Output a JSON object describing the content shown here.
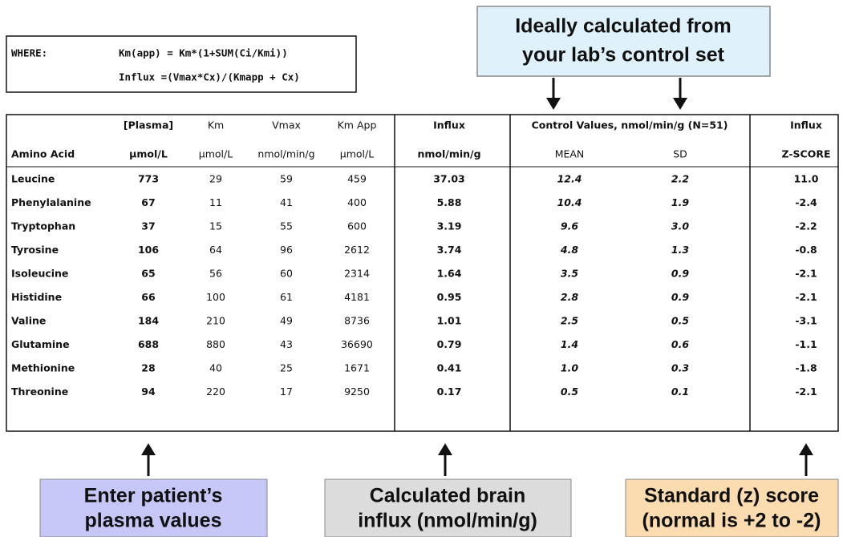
{
  "formula": {
    "label": "WHERE:",
    "lines": [
      "Km(app) =  Km*(1+SUM(Ci/Kmi))",
      "Influx =(Vmax*Cx)/(Kmapp + Cx)"
    ]
  },
  "top_callout": {
    "lines": [
      "Ideally calculated from",
      "your lab’s control set"
    ]
  },
  "table": {
    "header_top": [
      "[Plasma]",
      "Km",
      "Vmax",
      "Km App",
      "Influx",
      "Control Values, nmol/min/g (N=51)",
      "Influx"
    ],
    "header": [
      "Amino Acid",
      "μmol/L",
      "μmol/L",
      "nmol/min/g",
      "μmol/L",
      "nmol/min/g",
      "MEAN",
      "SD",
      "Z-SCORE"
    ],
    "rows": [
      [
        "Leucine",
        "773",
        "29",
        "59",
        "459",
        "37.03",
        "12.4",
        "2.2",
        "11.0"
      ],
      [
        "Phenylalanine",
        "67",
        "11",
        "41",
        "400",
        "5.88",
        "10.4",
        "1.9",
        "-2.4"
      ],
      [
        "Tryptophan",
        "37",
        "15",
        "55",
        "600",
        "3.19",
        "9.6",
        "3.0",
        "-2.2"
      ],
      [
        "Tyrosine",
        "106",
        "64",
        "96",
        "2612",
        "3.74",
        "4.8",
        "1.3",
        "-0.8"
      ],
      [
        "Isoleucine",
        "65",
        "56",
        "60",
        "2314",
        "1.64",
        "3.5",
        "0.9",
        "-2.1"
      ],
      [
        "Histidine",
        "66",
        "100",
        "61",
        "4181",
        "0.95",
        "2.8",
        "0.9",
        "-2.1"
      ],
      [
        "Valine",
        "184",
        "210",
        "49",
        "8736",
        "1.01",
        "2.5",
        "0.5",
        "-3.1"
      ],
      [
        "Glutamine",
        "688",
        "880",
        "43",
        "36690",
        "0.79",
        "1.4",
        "0.6",
        "-1.1"
      ],
      [
        "Methionine",
        "28",
        "40",
        "25",
        "1671",
        "0.41",
        "1.0",
        "0.3",
        "-1.8"
      ],
      [
        "Threonine",
        "94",
        "220",
        "17",
        "9250",
        "0.17",
        "0.5",
        "0.1",
        "-2.1"
      ]
    ]
  },
  "bottom_callouts": [
    {
      "lines": [
        "Enter patient’s",
        "plasma values"
      ]
    },
    {
      "lines": [
        "Calculated brain",
        "influx (nmol/min/g)"
      ]
    },
    {
      "lines": [
        "Standard (z) score",
        "(normal is +2 to -2)"
      ]
    }
  ]
}
